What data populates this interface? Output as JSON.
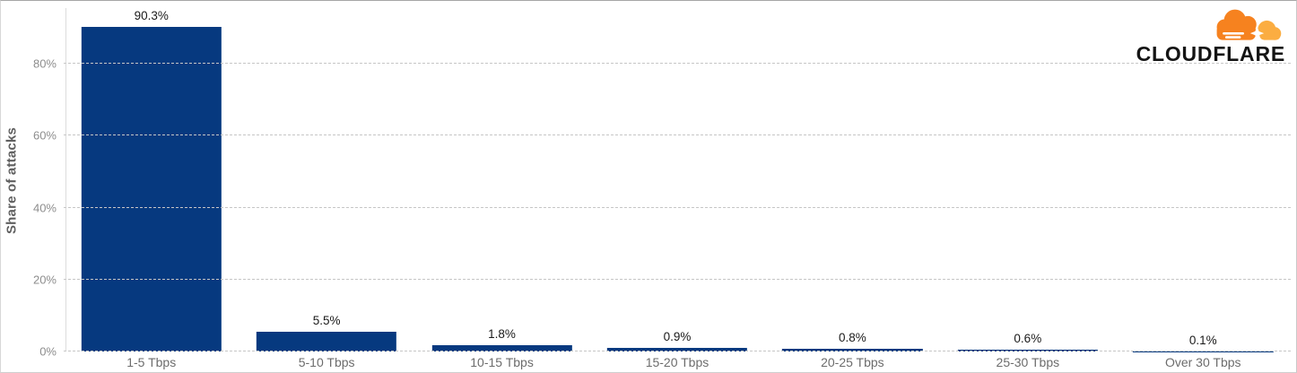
{
  "chart_data": {
    "type": "bar",
    "title": "",
    "xlabel": "",
    "ylabel": "Share of attacks",
    "categories": [
      "1-5 Tbps",
      "5-10 Tbps",
      "10-15 Tbps",
      "15-20 Tbps",
      "20-25 Tbps",
      "25-30 Tbps",
      "Over 30 Tbps"
    ],
    "values": [
      90.3,
      5.5,
      1.8,
      0.9,
      0.8,
      0.6,
      0.1
    ],
    "value_labels": [
      "90.3%",
      "5.5%",
      "1.8%",
      "0.9%",
      "0.8%",
      "0.6%",
      "0.1%"
    ],
    "yticks": [
      {
        "value": 0,
        "label": "0%"
      },
      {
        "value": 20,
        "label": "20%"
      },
      {
        "value": 40,
        "label": "40%"
      },
      {
        "value": 60,
        "label": "60%"
      },
      {
        "value": 80,
        "label": "80%"
      }
    ],
    "ylim": [
      0,
      97.5
    ],
    "grid": "horizontal-dashed",
    "legend": "none",
    "bar_color": "#06397f",
    "gridline_color": "#c6c6c6"
  },
  "branding": {
    "logo_text": "CLOUDFLARE",
    "cloud_dark_orange": "#f6821f",
    "cloud_light_orange": "#fbad41"
  }
}
